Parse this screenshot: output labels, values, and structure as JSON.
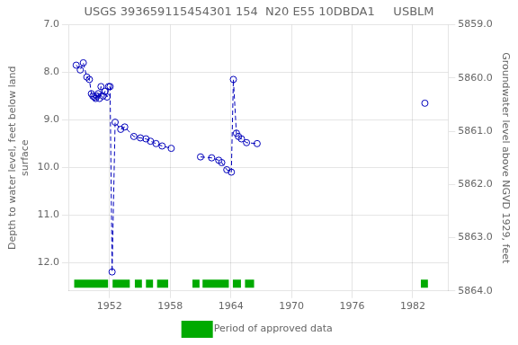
{
  "chart_data": {
    "type": "line",
    "title": "USGS 393659115454301 154  N20 E55 10DBDA1     USBLM",
    "y_label": "Depth to water level, feet below land\nsurface",
    "y2_label": "Groundwater level above NGVD 1929, feet",
    "x": [
      1948.7,
      1949.1,
      1949.4,
      1949.75,
      1950.0,
      1950.2,
      1950.35,
      1950.5,
      1950.62,
      1950.75,
      1950.88,
      1951.0,
      1951.15,
      1951.35,
      1951.55,
      1951.75,
      1951.9,
      1952.05,
      1952.25,
      1952.55,
      1953.1,
      1953.5,
      1954.4,
      1955.05,
      1955.6,
      1956.05,
      1956.6,
      1957.2,
      1958.1,
      null,
      1961.0,
      1962.1,
      1962.8,
      1963.1,
      1963.6,
      1964.05,
      1964.25,
      1964.55,
      1964.75,
      1965.05,
      1965.55,
      1966.6,
      null,
      1983.2
    ],
    "values": [
      7.85,
      7.95,
      7.8,
      8.1,
      8.15,
      8.45,
      8.5,
      8.52,
      8.55,
      8.5,
      8.45,
      8.55,
      8.3,
      8.5,
      8.4,
      8.52,
      8.3,
      8.3,
      12.2,
      9.05,
      9.2,
      9.15,
      9.35,
      9.38,
      9.4,
      9.45,
      9.5,
      9.55,
      9.6,
      null,
      9.78,
      9.8,
      9.85,
      9.9,
      10.05,
      10.1,
      8.15,
      9.28,
      9.35,
      9.4,
      9.48,
      9.5,
      null,
      8.65
    ],
    "color": "#0000bb",
    "marker": "circle",
    "line_style": "dashed",
    "xlim": [
      1948.0,
      1985.5
    ],
    "xticks": [
      1952,
      1958,
      1964,
      1970,
      1976,
      1982
    ],
    "ylim": [
      12.6,
      7.0
    ],
    "yticks": [
      {
        "value": 7.0,
        "label": "7.0"
      },
      {
        "value": 8.0,
        "label": "8.0"
      },
      {
        "value": 9.0,
        "label": "9.0"
      },
      {
        "value": 10.0,
        "label": "10.0"
      },
      {
        "value": 11.0,
        "label": "11.0"
      },
      {
        "value": 12.0,
        "label": "12.0"
      }
    ],
    "y2lim": [
      5864.0,
      5859.0
    ],
    "y2ticks": [
      {
        "value": 5864.0,
        "label": "5864.0"
      },
      {
        "value": 5863.0,
        "label": "5863.0"
      },
      {
        "value": 5862.0,
        "label": "5862.0"
      },
      {
        "value": 5861.0,
        "label": "5861.0"
      },
      {
        "value": 5860.0,
        "label": "5860.0"
      },
      {
        "value": 5859.0,
        "label": "5859.0"
      }
    ],
    "grid": true,
    "legend": "bottom",
    "periods": {
      "name": "Period of approved data",
      "color": "#00aa00",
      "y": 12.45,
      "ranges": [
        [
          1948.5,
          1951.85
        ],
        [
          1952.3,
          1954.0
        ],
        [
          1954.5,
          1955.2
        ],
        [
          1955.6,
          1956.3
        ],
        [
          1956.7,
          1957.8
        ],
        [
          1960.2,
          1960.9
        ],
        [
          1961.2,
          1963.8
        ],
        [
          1964.2,
          1965.0
        ],
        [
          1965.4,
          1966.3
        ],
        [
          1982.8,
          1983.5
        ]
      ]
    }
  }
}
